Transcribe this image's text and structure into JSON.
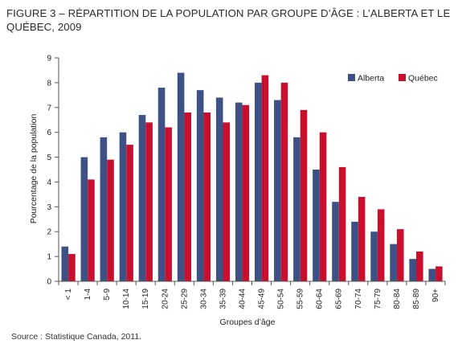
{
  "figure": {
    "title": "FIGURE 3 – RÉPARTITION DE LA POPULATION PAR GROUPE D’ÂGE : L’ALBERTA ET LE QUÉBEC, 2009",
    "source": "Source : Statistique Canada, 2011."
  },
  "chart_data": {
    "type": "bar",
    "title": "FIGURE 3 – RÉPARTITION DE LA POPULATION PAR GROUPE D’ÂGE : L’ALBERTA ET LE QUÉBEC, 2009",
    "xlabel": "Groupes d’âge",
    "ylabel": "Pourcentage de la population",
    "ylim": [
      0,
      9
    ],
    "yticks": [
      0,
      1,
      2,
      3,
      4,
      5,
      6,
      7,
      8,
      9
    ],
    "grid": false,
    "legend_position": "top-right",
    "categories": [
      "< 1",
      "1-4",
      "5-9",
      "10-14",
      "15-19",
      "20-24",
      "25-29",
      "30-34",
      "35-39",
      "40-44",
      "45-49",
      "50-54",
      "55-59",
      "60-64",
      "65-69",
      "70-74",
      "75-79",
      "80-84",
      "85-89",
      "90+"
    ],
    "series": [
      {
        "name": "Alberta",
        "color": "#3d5186",
        "values": [
          1.4,
          5.0,
          5.8,
          6.0,
          6.7,
          7.8,
          8.4,
          7.7,
          7.4,
          7.2,
          8.0,
          7.3,
          5.8,
          4.5,
          3.2,
          2.4,
          2.0,
          1.5,
          0.9,
          0.5
        ]
      },
      {
        "name": "Québec",
        "color": "#c8102e",
        "values": [
          1.1,
          4.1,
          4.9,
          5.5,
          6.4,
          6.2,
          6.8,
          6.8,
          6.4,
          7.1,
          8.3,
          8.0,
          6.9,
          6.0,
          4.6,
          3.4,
          2.9,
          2.1,
          1.2,
          0.6
        ]
      }
    ]
  }
}
